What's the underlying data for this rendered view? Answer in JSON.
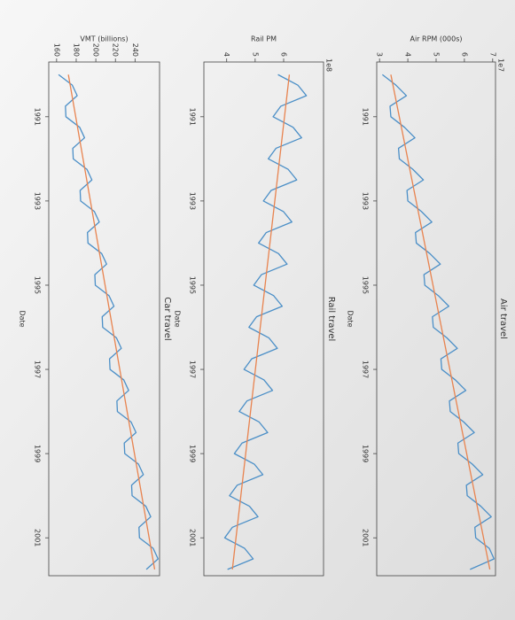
{
  "chart_data": [
    {
      "type": "line",
      "title": "Air travel",
      "xlabel": "Date",
      "ylabel": "Air RPM (000s)",
      "scale_label": "1e7",
      "x": [
        1990,
        1990.25,
        1990.5,
        1990.75,
        1991,
        1991.25,
        1991.5,
        1991.75,
        1992,
        1992.25,
        1992.5,
        1992.75,
        1993,
        1993.25,
        1993.5,
        1993.75,
        1994,
        1994.25,
        1994.5,
        1994.75,
        1995,
        1995.25,
        1995.5,
        1995.75,
        1996,
        1996.25,
        1996.5,
        1996.75,
        1997,
        1997.25,
        1997.5,
        1997.75,
        1998,
        1998.25,
        1998.5,
        1998.75,
        1999,
        1999.25,
        1999.5,
        1999.75,
        2000,
        2000.25,
        2000.5,
        2000.75,
        2001,
        2001.25,
        2001.5,
        2001.75
      ],
      "series": [
        {
          "color": "#4b8fc7",
          "values": [
            3.1,
            3.58,
            3.95,
            3.37,
            3.4,
            3.88,
            4.25,
            3.67,
            3.7,
            4.18,
            4.55,
            3.97,
            4.0,
            4.48,
            4.85,
            4.27,
            4.3,
            4.78,
            5.15,
            4.57,
            4.6,
            5.08,
            5.45,
            4.87,
            4.9,
            5.38,
            5.75,
            5.17,
            5.2,
            5.68,
            6.05,
            5.47,
            5.5,
            5.98,
            6.35,
            5.77,
            5.8,
            6.28,
            6.65,
            6.07,
            6.1,
            6.58,
            6.95,
            6.37,
            6.4,
            6.88,
            7.05,
            6.2
          ]
        }
      ],
      "trend": {
        "color": "#e8834f",
        "x": [
          1990,
          2001.75
        ],
        "values": [
          3.4,
          6.9
        ]
      },
      "xlim": [
        1989.7,
        2001.9
      ],
      "xticks": [
        1991,
        1993,
        1995,
        1997,
        1999,
        2001
      ],
      "ylim": [
        2.9,
        7.1
      ],
      "yticks": [
        3,
        4,
        5,
        6,
        7
      ]
    },
    {
      "type": "line",
      "title": "Rail travel",
      "xlabel": "Date",
      "ylabel": "Rail PM",
      "scale_label": "1e8",
      "x": [
        1990,
        1990.25,
        1990.5,
        1990.75,
        1991,
        1991.25,
        1991.5,
        1991.75,
        1992,
        1992.25,
        1992.5,
        1992.75,
        1993,
        1993.25,
        1993.5,
        1993.75,
        1994,
        1994.25,
        1994.5,
        1994.75,
        1995,
        1995.25,
        1995.5,
        1995.75,
        1996,
        1996.25,
        1996.5,
        1996.75,
        1997,
        1997.25,
        1997.5,
        1997.75,
        1998,
        1998.25,
        1998.5,
        1998.75,
        1999,
        1999.25,
        1999.5,
        1999.75,
        2000,
        2000.25,
        2000.5,
        2000.75,
        2001,
        2001.25,
        2001.5,
        2001.75
      ],
      "series": [
        {
          "color": "#4b8fc7",
          "values": [
            5.8,
            6.5,
            6.8,
            5.9,
            5.63,
            6.33,
            6.63,
            5.73,
            5.46,
            6.16,
            6.46,
            5.56,
            5.29,
            5.99,
            6.29,
            5.39,
            5.12,
            5.82,
            6.12,
            5.22,
            4.95,
            5.65,
            5.95,
            5.05,
            4.78,
            5.48,
            5.78,
            4.88,
            4.61,
            5.31,
            5.61,
            4.71,
            4.44,
            5.14,
            5.44,
            4.54,
            4.27,
            4.97,
            5.27,
            4.37,
            4.1,
            4.8,
            5.1,
            4.2,
            3.93,
            4.63,
            4.93,
            4.03
          ]
        }
      ],
      "trend": {
        "color": "#e8834f",
        "x": [
          1990,
          2001.75
        ],
        "values": [
          6.2,
          4.2
        ]
      },
      "xlim": [
        1989.7,
        2001.9
      ],
      "xticks": [
        1991,
        1993,
        1995,
        1997,
        1999,
        2001
      ],
      "ylim": [
        3.2,
        7.4
      ],
      "yticks": [
        4,
        5,
        6
      ]
    },
    {
      "type": "line",
      "title": "Car travel",
      "xlabel": "Date",
      "ylabel": "VMT (billions)",
      "x": [
        1990,
        1990.25,
        1990.5,
        1990.75,
        1991,
        1991.25,
        1991.5,
        1991.75,
        1992,
        1992.25,
        1992.5,
        1992.75,
        1993,
        1993.25,
        1993.5,
        1993.75,
        1994,
        1994.25,
        1994.5,
        1994.75,
        1995,
        1995.25,
        1995.5,
        1995.75,
        1996,
        1996.25,
        1996.5,
        1996.75,
        1997,
        1997.25,
        1997.5,
        1997.75,
        1998,
        1998.25,
        1998.5,
        1998.75,
        1999,
        1999.25,
        1999.5,
        1999.75,
        2000,
        2000.25,
        2000.5,
        2000.75,
        2001,
        2001.25,
        2001.5,
        2001.75
      ],
      "series": [
        {
          "color": "#4b8fc7",
          "values": [
            162,
            176,
            181,
            169,
            169.5,
            183.5,
            188.5,
            176.5,
            177,
            191,
            196,
            184,
            184.5,
            198.5,
            203.5,
            191.5,
            192,
            206,
            211,
            199,
            199.5,
            213.5,
            218.5,
            206.5,
            207,
            221,
            226,
            214,
            214.5,
            228.5,
            233.5,
            221.5,
            222,
            236,
            241,
            229,
            229.5,
            243.5,
            248.5,
            236.5,
            237,
            251,
            256,
            244,
            244.5,
            258.5,
            263.5,
            251.5
          ]
        }
      ],
      "trend": {
        "color": "#e8834f",
        "x": [
          1990,
          2001.75
        ],
        "values": [
          172,
          260
        ]
      },
      "xlim": [
        1989.7,
        2001.9
      ],
      "xticks": [
        1991,
        1993,
        1995,
        1997,
        1999,
        2001
      ],
      "ylim": [
        152,
        265
      ],
      "yticks": [
        160,
        180,
        200,
        220,
        240
      ]
    }
  ]
}
